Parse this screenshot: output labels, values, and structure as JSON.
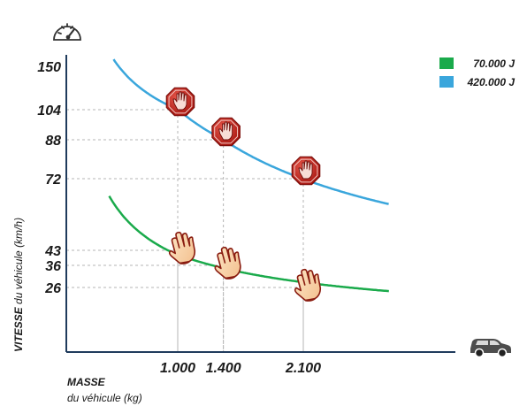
{
  "chart_data": {
    "type": "line",
    "x_ticks": [
      "1.000",
      "1.400",
      "2.100"
    ],
    "y_ticks": [
      "150",
      "104",
      "88",
      "72",
      "43",
      "36",
      "26"
    ],
    "x_tick_values": [
      1000,
      1400,
      2100
    ],
    "y_tick_values": [
      150,
      104,
      88,
      72,
      43,
      36,
      26
    ],
    "xlabel": {
      "bold": "MASSE",
      "normal": "du véhicule (kg)"
    },
    "ylabel": {
      "bold": "VITESSE",
      "normal": " du véhicule (km/h)"
    },
    "legend_position": "top-right",
    "grid": "dashed at marked points",
    "series": [
      {
        "name": "70.000 J",
        "color": "#1aaa4b",
        "energy_j": 70000,
        "marker": "hand",
        "points": [
          {
            "x": 1000,
            "y": 43
          },
          {
            "x": 1400,
            "y": 36
          },
          {
            "x": 2100,
            "y": 26
          }
        ]
      },
      {
        "name": "420.000 J",
        "color": "#3aa6dc",
        "energy_j": 420000,
        "marker": "stop-sign",
        "points": [
          {
            "x": 1000,
            "y": 104
          },
          {
            "x": 1400,
            "y": 88
          },
          {
            "x": 2100,
            "y": 72
          }
        ]
      }
    ],
    "icons": {
      "y_axis": "speedometer-icon",
      "x_axis": "car-icon"
    }
  }
}
